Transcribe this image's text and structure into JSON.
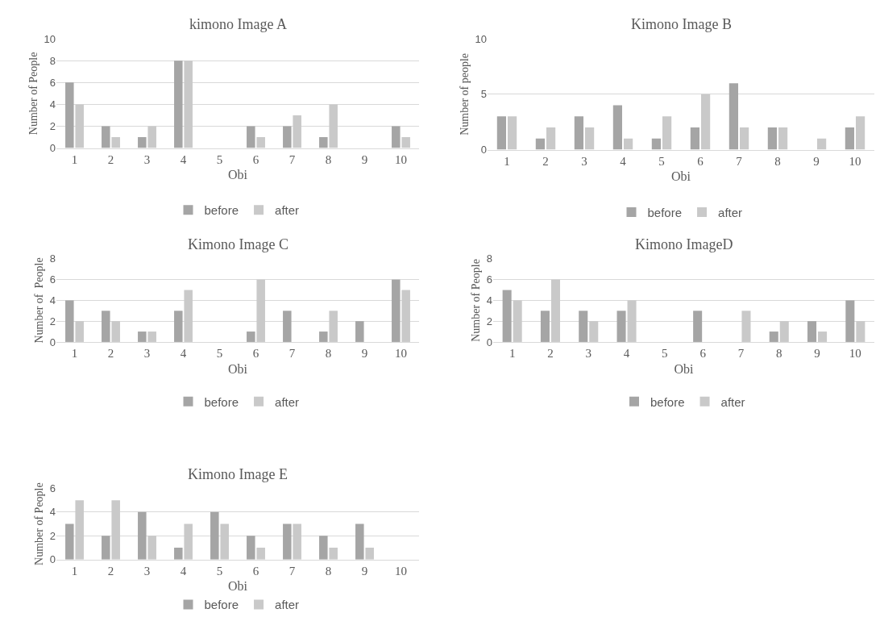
{
  "chart_data": [
    {
      "type": "bar",
      "title": "kimono Image A",
      "xlabel": "Obi",
      "ylabel": "Number of People",
      "categories": [
        "1",
        "2",
        "3",
        "4",
        "5",
        "6",
        "7",
        "8",
        "9",
        "10"
      ],
      "series": [
        {
          "name": "before",
          "color": "#a5a5a5",
          "values": [
            6,
            2,
            1,
            8,
            0,
            2,
            2,
            1,
            0,
            2
          ]
        },
        {
          "name": "after",
          "color": "#c9c9c9",
          "values": [
            4,
            1,
            2,
            8,
            0,
            1,
            3,
            4,
            0,
            1
          ]
        }
      ],
      "ylim": [
        0,
        10
      ],
      "yticks": [
        0,
        2,
        4,
        6,
        8,
        10
      ],
      "grid": "y",
      "legend": "bottom"
    },
    {
      "type": "bar",
      "title": "Kimono Image B",
      "xlabel": "Obi",
      "ylabel": "Number of people",
      "categories": [
        "1",
        "2",
        "3",
        "4",
        "5",
        "6",
        "7",
        "8",
        "9",
        "10"
      ],
      "series": [
        {
          "name": "before",
          "color": "#a5a5a5",
          "values": [
            3,
            1,
            3,
            4,
            1,
            2,
            6,
            2,
            0,
            2
          ]
        },
        {
          "name": "after",
          "color": "#c9c9c9",
          "values": [
            3,
            2,
            2,
            1,
            3,
            5,
            2,
            2,
            1,
            3
          ]
        }
      ],
      "ylim": [
        0,
        10
      ],
      "yticks": [
        0,
        5,
        10
      ],
      "grid": "y",
      "legend": "bottom"
    },
    {
      "type": "bar",
      "title": "Kimono Image C",
      "xlabel": "Obi",
      "ylabel": "Number of  People",
      "categories": [
        "1",
        "2",
        "3",
        "4",
        "5",
        "6",
        "7",
        "8",
        "9",
        "10"
      ],
      "series": [
        {
          "name": "before",
          "color": "#a5a5a5",
          "values": [
            4,
            3,
            1,
            3,
            0,
            1,
            3,
            1,
            2,
            6
          ]
        },
        {
          "name": "after",
          "color": "#c9c9c9",
          "values": [
            2,
            2,
            1,
            5,
            0,
            6,
            0,
            3,
            0,
            5
          ]
        }
      ],
      "ylim": [
        0,
        8
      ],
      "yticks": [
        0,
        2,
        4,
        6,
        8
      ],
      "grid": "y",
      "legend": "bottom"
    },
    {
      "type": "bar",
      "title": "Kimono ImageD",
      "xlabel": "Obi",
      "ylabel": "Number of People",
      "categories": [
        "1",
        "2",
        "3",
        "4",
        "5",
        "6",
        "7",
        "8",
        "9",
        "10"
      ],
      "series": [
        {
          "name": "before",
          "color": "#a5a5a5",
          "values": [
            5,
            3,
            3,
            3,
            0,
            3,
            0,
            1,
            2,
            4
          ]
        },
        {
          "name": "after",
          "color": "#c9c9c9",
          "values": [
            4,
            6,
            2,
            4,
            0,
            0,
            3,
            2,
            1,
            2
          ]
        }
      ],
      "ylim": [
        0,
        8
      ],
      "yticks": [
        0,
        2,
        4,
        6,
        8
      ],
      "grid": "y",
      "legend": "bottom"
    },
    {
      "type": "bar",
      "title": "Kimono Image E",
      "xlabel": "Obi",
      "ylabel": "Number of People",
      "categories": [
        "1",
        "2",
        "3",
        "4",
        "5",
        "6",
        "7",
        "8",
        "9",
        "10"
      ],
      "series": [
        {
          "name": "before",
          "color": "#a5a5a5",
          "values": [
            3,
            2,
            4,
            1,
            4,
            2,
            3,
            2,
            3,
            0
          ]
        },
        {
          "name": "after",
          "color": "#c9c9c9",
          "values": [
            5,
            5,
            2,
            3,
            3,
            1,
            3,
            1,
            1,
            0
          ]
        }
      ],
      "ylim": [
        0,
        6
      ],
      "yticks": [
        0,
        2,
        4,
        6
      ],
      "grid": "y",
      "legend": "bottom"
    }
  ]
}
